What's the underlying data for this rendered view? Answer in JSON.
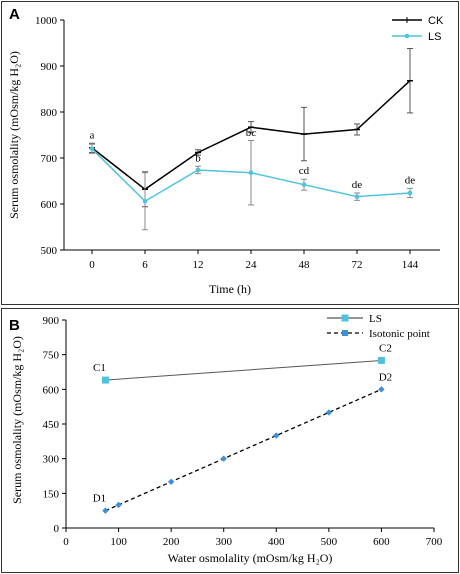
{
  "chart_data": [
    {
      "panel": "A",
      "type": "line",
      "xlabel": "Time (h)",
      "ylabel": "Serum osmolality (mOsm/kg H₂O)",
      "categories": [
        "0",
        "6",
        "12",
        "24",
        "48",
        "72",
        "144"
      ],
      "ylim": [
        500,
        1000
      ],
      "yticks": [
        500,
        600,
        700,
        800,
        900,
        1000
      ],
      "legend_position": "top-right",
      "series": [
        {
          "name": "CK",
          "color": "#000000",
          "values": [
            722,
            632,
            712,
            767,
            752,
            762,
            868
          ],
          "errors": [
            10,
            38,
            6,
            12,
            58,
            12,
            70
          ]
        },
        {
          "name": "LS",
          "color": "#4fc3dc",
          "values": [
            720,
            606,
            674,
            668,
            642,
            616,
            624
          ],
          "errors": [
            10,
            62,
            8,
            70,
            12,
            8,
            10
          ]
        }
      ],
      "annotations": [
        "a",
        "",
        "b",
        "bc",
        "cd",
        "de",
        "de"
      ]
    },
    {
      "panel": "B",
      "type": "scatter",
      "xlabel": "Water osmolality (mOsm/kg H₂O)",
      "ylabel": "Serum osmolality (mOsm/kg H₂O)",
      "xlim": [
        0,
        700
      ],
      "ylim": [
        0,
        900
      ],
      "xticks": [
        0,
        100,
        200,
        300,
        400,
        500,
        600,
        700
      ],
      "yticks": [
        0,
        150,
        300,
        450,
        600,
        750,
        900
      ],
      "legend_position": "top-right",
      "series": [
        {
          "name": "LS",
          "color": "#555555",
          "marker_color": "#4fc3dc",
          "style": "solid",
          "points": [
            [
              75,
              640
            ],
            [
              600,
              725
            ]
          ]
        },
        {
          "name": "Isotonic point",
          "color": "#000000",
          "marker_color": "#3d8fd8",
          "style": "dashed",
          "points": [
            [
              75,
              75
            ],
            [
              100,
              100
            ],
            [
              200,
              200
            ],
            [
              300,
              300
            ],
            [
              400,
              400
            ],
            [
              500,
              500
            ],
            [
              600,
              600
            ]
          ]
        }
      ],
      "point_labels": [
        {
          "text": "C1",
          "x": 75,
          "y": 640
        },
        {
          "text": "C2",
          "x": 600,
          "y": 725
        },
        {
          "text": "D1",
          "x": 75,
          "y": 75
        },
        {
          "text": "D2",
          "x": 600,
          "y": 600
        }
      ]
    }
  ]
}
